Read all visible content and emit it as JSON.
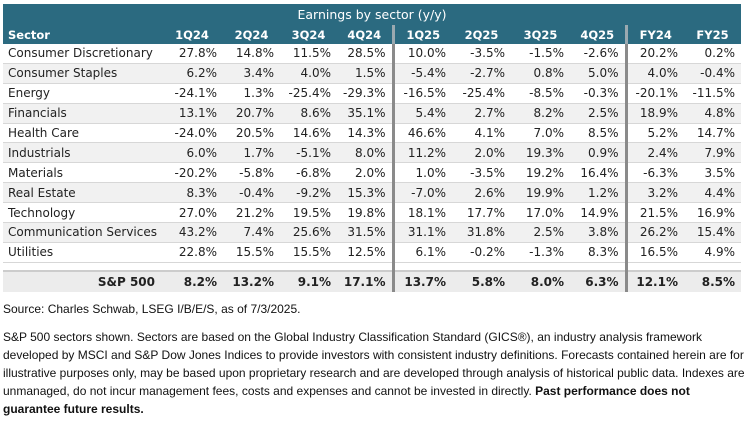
{
  "table": {
    "title": "Earnings by sector (y/y)",
    "columns": [
      "Sector",
      "1Q24",
      "2Q24",
      "3Q24",
      "4Q24",
      "1Q25",
      "2Q25",
      "3Q25",
      "4Q25",
      "FY24",
      "FY25"
    ],
    "rows": [
      {
        "sector": "Consumer Discretionary",
        "values": [
          "27.8%",
          "14.8%",
          "11.5%",
          "28.5%",
          "10.0%",
          "-3.5%",
          "-1.5%",
          "-2.6%",
          "20.2%",
          "0.2%"
        ]
      },
      {
        "sector": "Consumer Staples",
        "values": [
          "6.2%",
          "3.4%",
          "4.0%",
          "1.5%",
          "-5.4%",
          "-2.7%",
          "0.8%",
          "5.0%",
          "4.0%",
          "-0.4%"
        ]
      },
      {
        "sector": "Energy",
        "values": [
          "-24.1%",
          "1.3%",
          "-25.4%",
          "-29.3%",
          "-16.5%",
          "-25.4%",
          "-8.5%",
          "-0.3%",
          "-20.1%",
          "-11.5%"
        ]
      },
      {
        "sector": "Financials",
        "values": [
          "13.1%",
          "20.7%",
          "8.6%",
          "35.1%",
          "5.4%",
          "2.7%",
          "8.2%",
          "2.5%",
          "18.9%",
          "4.8%"
        ]
      },
      {
        "sector": "Health Care",
        "values": [
          "-24.0%",
          "20.5%",
          "14.6%",
          "14.3%",
          "46.6%",
          "4.1%",
          "7.0%",
          "8.5%",
          "5.2%",
          "14.7%"
        ]
      },
      {
        "sector": "Industrials",
        "values": [
          "6.0%",
          "1.7%",
          "-5.1%",
          "8.0%",
          "11.2%",
          "2.0%",
          "19.3%",
          "0.9%",
          "2.4%",
          "7.9%"
        ]
      },
      {
        "sector": "Materials",
        "values": [
          "-20.2%",
          "-5.8%",
          "-6.8%",
          "2.0%",
          "1.0%",
          "-3.5%",
          "19.2%",
          "16.4%",
          "-6.3%",
          "3.5%"
        ]
      },
      {
        "sector": "Real Estate",
        "values": [
          "8.3%",
          "-0.4%",
          "-9.2%",
          "15.3%",
          "-7.0%",
          "2.6%",
          "19.9%",
          "1.2%",
          "3.2%",
          "4.4%"
        ]
      },
      {
        "sector": "Technology",
        "values": [
          "27.0%",
          "21.2%",
          "19.5%",
          "19.8%",
          "18.1%",
          "17.7%",
          "17.0%",
          "14.9%",
          "21.5%",
          "16.9%"
        ]
      },
      {
        "sector": "Communication Services",
        "values": [
          "43.2%",
          "7.4%",
          "25.6%",
          "31.5%",
          "31.1%",
          "31.8%",
          "2.5%",
          "3.8%",
          "26.2%",
          "15.4%"
        ]
      },
      {
        "sector": "Utilities",
        "values": [
          "22.8%",
          "15.5%",
          "15.5%",
          "12.5%",
          "6.1%",
          "-0.2%",
          "-1.3%",
          "8.3%",
          "16.5%",
          "4.9%"
        ]
      }
    ],
    "total": {
      "sector": "S&P 500",
      "values": [
        "8.2%",
        "13.2%",
        "9.1%",
        "17.1%",
        "13.7%",
        "5.8%",
        "8.0%",
        "6.3%",
        "12.1%",
        "8.5%"
      ]
    }
  },
  "notes": {
    "source": "Source: Charles Schwab, LSEG I/B/E/S, as of 7/3/2025.",
    "disclaimer": "S&P 500 sectors shown. Sectors are based on the Global Industry Classification Standard (GICS®), an industry analysis framework developed by MSCI and S&P Dow Jones Indices to provide investors with consistent industry definitions. Forecasts contained herein are for illustrative purposes only, may be based upon proprietary research and are developed through analysis of historical public data. Indexes are unmanaged, do not incur management fees, costs and expenses and cannot be invested in directly.",
    "disclaimer_bold": "Past performance does not guarantee future results."
  }
}
